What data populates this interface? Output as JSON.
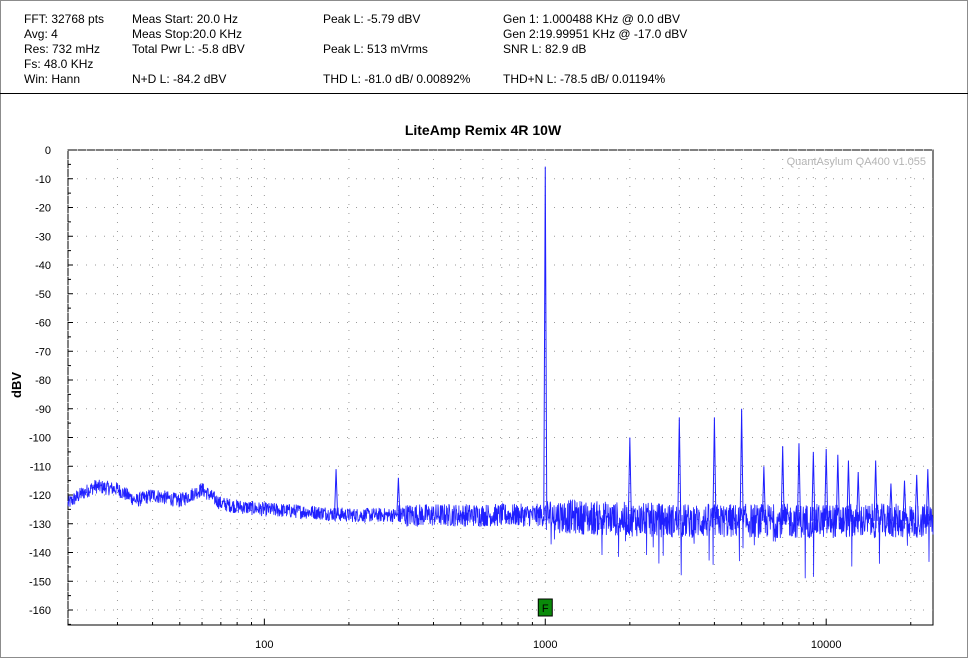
{
  "stats": {
    "fft": "FFT: 32768 pts",
    "avg": "Avg: 4",
    "res": "Res: 732 mHz",
    "fs": "Fs: 48.0 KHz",
    "win": "Win: Hann",
    "meas_start": "Meas Start: 20.0 Hz",
    "meas_stop": "Meas Stop:20.0 KHz",
    "total_pwr": "Total Pwr L: -5.8 dBV",
    "nd": "N+D L: -84.2 dBV",
    "peak_dbv": "Peak L: -5.79 dBV",
    "peak_mv": "Peak L: 513 mVrms",
    "thd": "THD L: -81.0 dB/ 0.00892%",
    "gen1": "Gen 1: 1.000488 KHz @ 0.0  dBV",
    "gen2": "Gen 2:19.99951 KHz @ -17.0  dBV",
    "snr": "SNR L: 82.9 dB",
    "thdn": "THD+N L: -78.5 dB/ 0.01194%"
  },
  "chart_data": {
    "type": "line",
    "title": "LiteAmp Remix 4R 10W",
    "ylabel": "dBV",
    "xlabel": "",
    "watermark": "QuantAsylum QA400 v1.055",
    "x_scale": "log",
    "xlim": [
      20,
      24000
    ],
    "ylim": [
      -165,
      0
    ],
    "y_ticks": [
      0,
      -10,
      -20,
      -30,
      -40,
      -50,
      -60,
      -70,
      -80,
      -90,
      -100,
      -110,
      -120,
      -130,
      -140,
      -150,
      -160
    ],
    "x_tick_labels": [
      {
        "value": 100,
        "label": "100"
      },
      {
        "value": 1000,
        "label": "1000"
      },
      {
        "value": 10000,
        "label": "10000"
      }
    ],
    "grid": true,
    "marker": {
      "label": "F",
      "x": 1000,
      "color": "#0a8a0a"
    },
    "series": [
      {
        "color": "#1f1fff",
        "noise_floor": [
          [
            20,
            -123
          ],
          [
            22,
            -120
          ],
          [
            25,
            -117
          ],
          [
            30,
            -118
          ],
          [
            35,
            -122
          ],
          [
            40,
            -120
          ],
          [
            50,
            -122
          ],
          [
            60,
            -118
          ],
          [
            70,
            -123
          ],
          [
            80,
            -124
          ],
          [
            100,
            -125
          ],
          [
            150,
            -126
          ],
          [
            200,
            -127
          ],
          [
            300,
            -127
          ],
          [
            500,
            -127
          ],
          [
            800,
            -127
          ],
          [
            1000,
            -127
          ],
          [
            1500,
            -128
          ],
          [
            3000,
            -129
          ],
          [
            6000,
            -129
          ],
          [
            10000,
            -129
          ],
          [
            15000,
            -129
          ],
          [
            24000,
            -129
          ]
        ],
        "peaks": [
          {
            "x": 60,
            "y": -117
          },
          {
            "x": 180,
            "y": -111
          },
          {
            "x": 300,
            "y": -114
          },
          {
            "x": 1000,
            "y": -5.8
          },
          {
            "x": 2000,
            "y": -100
          },
          {
            "x": 3000,
            "y": -93
          },
          {
            "x": 4000,
            "y": -93
          },
          {
            "x": 5000,
            "y": -90
          },
          {
            "x": 6000,
            "y": -110
          },
          {
            "x": 7000,
            "y": -103
          },
          {
            "x": 8000,
            "y": -102
          },
          {
            "x": 9000,
            "y": -105
          },
          {
            "x": 10000,
            "y": -104
          },
          {
            "x": 11000,
            "y": -106
          },
          {
            "x": 12000,
            "y": -108
          },
          {
            "x": 13000,
            "y": -112
          },
          {
            "x": 15000,
            "y": -108
          },
          {
            "x": 17000,
            "y": -116
          },
          {
            "x": 19000,
            "y": -115
          },
          {
            "x": 21000,
            "y": -113
          },
          {
            "x": 23000,
            "y": -111
          }
        ]
      }
    ]
  }
}
